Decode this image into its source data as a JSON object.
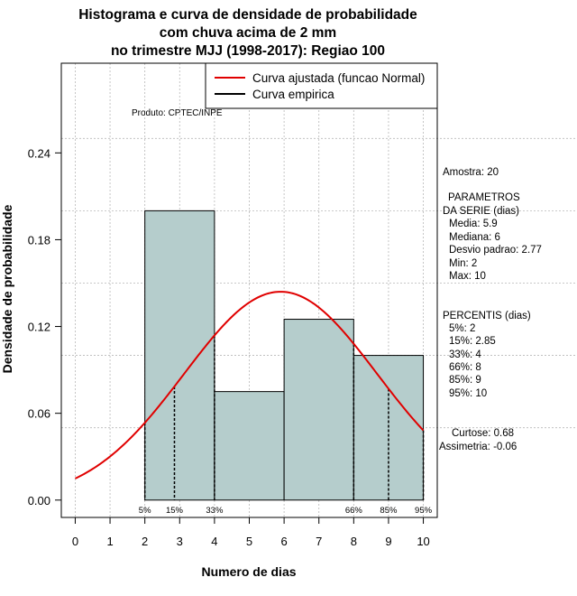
{
  "chart_data": {
    "type": "bar",
    "title_lines": [
      "Histograma e curva de densidade de probabilidade",
      "com chuva acima de 2 mm",
      "no trimestre MJJ (1998-2017): Regiao 100"
    ],
    "xlabel": "Numero de dias",
    "ylabel": "Densidade de probabilidade",
    "xlim": [
      -0.4,
      10.4
    ],
    "ylim": [
      -0.012,
      0.302
    ],
    "x_ticks": [
      0,
      1,
      2,
      3,
      4,
      5,
      6,
      7,
      8,
      9,
      10
    ],
    "x_tick_labels": [
      "0",
      "1",
      "2",
      "3",
      "4",
      "5",
      "6",
      "7",
      "8",
      "9",
      "10"
    ],
    "y_ticks": [
      0.0,
      0.06,
      0.12,
      0.18,
      0.24
    ],
    "y_tick_labels": [
      "0.00",
      "0.06",
      "0.12",
      "0.18",
      "0.24"
    ],
    "grid_x": [
      0,
      1,
      2,
      3,
      4,
      5,
      6,
      7,
      8,
      9,
      10
    ],
    "grid_y": [
      0.05,
      0.1,
      0.15,
      0.2,
      0.25
    ],
    "bar_color": "#b5cdcc",
    "bars": [
      {
        "start": 2,
        "end": 4,
        "density": 0.2
      },
      {
        "start": 4,
        "end": 6,
        "density": 0.075
      },
      {
        "start": 6,
        "end": 8,
        "density": 0.125
      },
      {
        "start": 8,
        "end": 10,
        "density": 0.1
      }
    ],
    "normal_curve": {
      "mean": 5.9,
      "sd": 2.77,
      "x_from": 0,
      "x_to": 10,
      "color": "#e00000"
    },
    "percentile_markers": [
      {
        "label": "5%",
        "x": 2
      },
      {
        "label": "15%",
        "x": 2.85
      },
      {
        "label": "33%",
        "x": 4
      },
      {
        "label": "66%",
        "x": 8
      },
      {
        "label": "85%",
        "x": 9
      },
      {
        "label": "95%",
        "x": 10
      }
    ],
    "legend": [
      {
        "label": "Curva ajustada (funcao Normal)",
        "color": "#e00000"
      },
      {
        "label": "Curva empirica",
        "color": "#000000"
      }
    ],
    "legend_position": "top-right",
    "product_label": "Produto: CPTEC/INPE",
    "side_stats": [
      "Amostra: 20",
      "PARAMETROS",
      "DA SERIE (dias)",
      "Media: 5.9",
      "Mediana: 6",
      "Desvio padrao: 2.77",
      "Min: 2",
      "Max: 10",
      "PERCENTIS (dias)",
      "5%: 2",
      "15%: 2.85",
      "33%: 4",
      "66%: 8",
      "85%: 9",
      "95%: 10",
      "Curtose: 0.68",
      "Assimetria: -0.06"
    ]
  }
}
